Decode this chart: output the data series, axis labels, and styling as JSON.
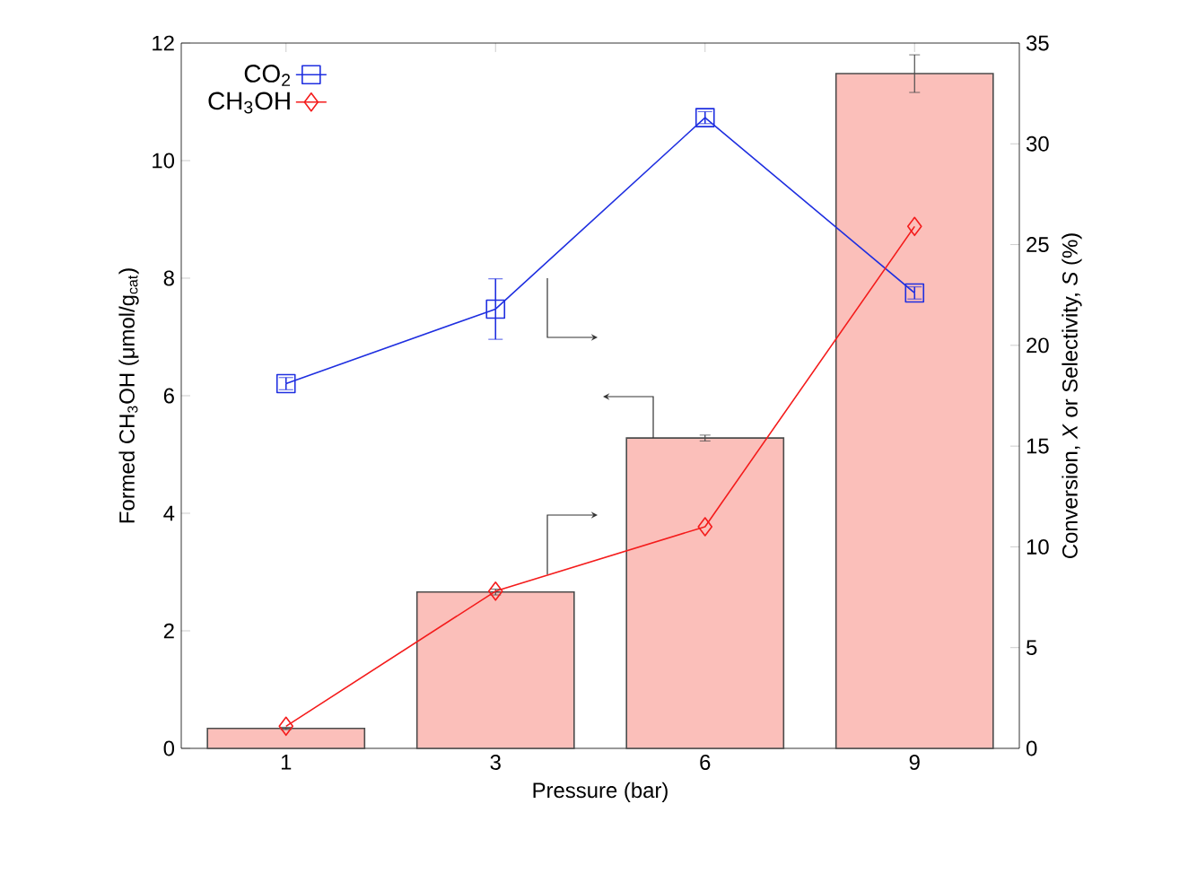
{
  "chart_data": {
    "type": "bar",
    "xlabel": "Pressure (bar)",
    "ylabel": "Formed CH$_{3}$OH (μmol/g$_{cat}$)",
    "y2label": "Conversion, *X* or Selectivity, *S* (%)",
    "categories": [
      "1",
      "3",
      "6",
      "9"
    ],
    "series": [
      {
        "color": "#fbbfba",
        "values": [
          0.34,
          2.66,
          5.28,
          11.48
        ],
        "errors": [
          0.02,
          0.05,
          0.05,
          0.32
        ]
      },
      {
        "type": "line",
        "name": "CO$_{2}$",
        "color": "#1f2fe0",
        "axis": "y2",
        "marker": "square",
        "values": [
          18.1,
          21.8,
          31.3,
          22.6
        ],
        "errors": [
          0.3,
          1.5,
          0.3,
          0.3
        ]
      },
      {
        "type": "line",
        "name": "CH$_{3}$OH",
        "color": "#f41c1c",
        "axis": "y2",
        "marker": "diamond",
        "values": [
          1.1,
          7.8,
          11.0,
          25.9
        ]
      }
    ],
    "ylim": [
      0,
      12
    ],
    "yticks": [
      0,
      2,
      4,
      6,
      8,
      10,
      12
    ],
    "y2lim": [
      0,
      35
    ],
    "y2ticks": [
      0,
      5,
      10,
      15,
      20,
      25,
      30,
      35
    ],
    "legend": "top left",
    "grid": false
  }
}
